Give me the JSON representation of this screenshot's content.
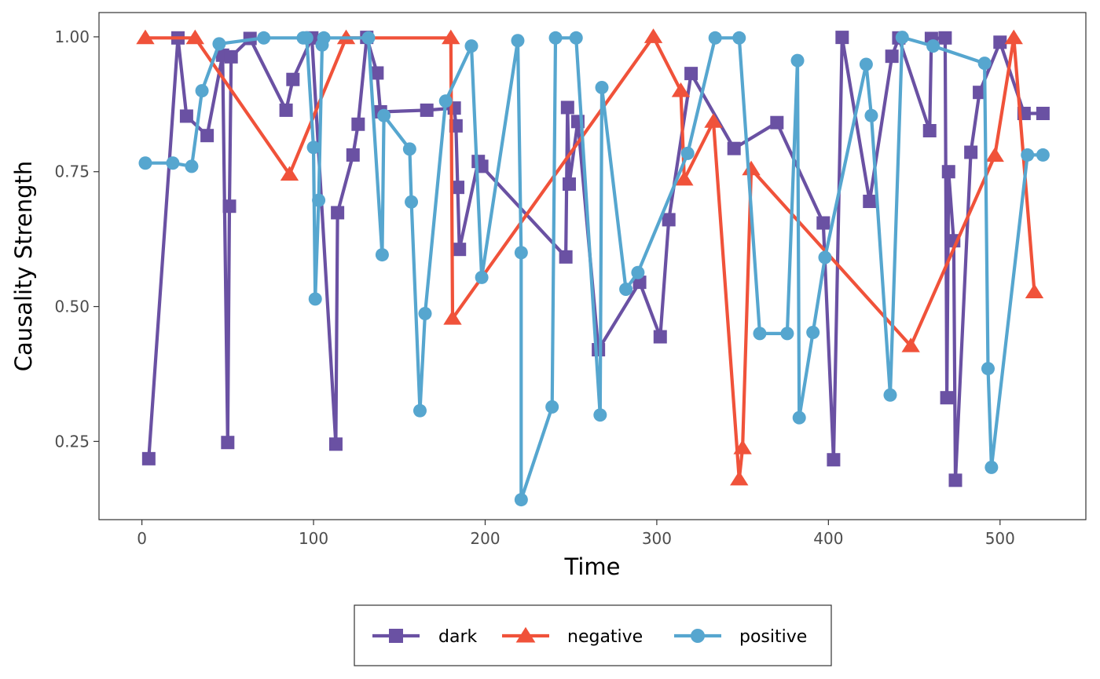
{
  "chart_data": {
    "type": "line",
    "xlabel": "Time",
    "ylabel": "Causality Strength",
    "xlim": [
      -25,
      550
    ],
    "ylim": [
      0.105,
      1.045
    ],
    "x_ticks": [
      0,
      100,
      200,
      300,
      400,
      500
    ],
    "y_ticks": [
      0.25,
      0.5,
      0.75,
      1.0
    ],
    "x_tick_labels": [
      "0",
      "100",
      "200",
      "300",
      "400",
      "500"
    ],
    "y_tick_labels": [
      "0.25",
      "0.50",
      "0.75",
      "1.00"
    ],
    "grid": false,
    "legend_position": "bottom",
    "series": [
      {
        "name": "dark",
        "color": "#6a51a3",
        "marker": "square",
        "points": [
          [
            4,
            0.218
          ],
          [
            21,
            0.998
          ],
          [
            26,
            0.853
          ],
          [
            38,
            0.817
          ],
          [
            47,
            0.966
          ],
          [
            50,
            0.248
          ],
          [
            51,
            0.686
          ],
          [
            52,
            0.963
          ],
          [
            63,
            0.997
          ],
          [
            84,
            0.864
          ],
          [
            88,
            0.921
          ],
          [
            99,
            0.998
          ],
          [
            113,
            0.245
          ],
          [
            114,
            0.674
          ],
          [
            123,
            0.781
          ],
          [
            126,
            0.838
          ],
          [
            131,
            0.999
          ],
          [
            137,
            0.933
          ],
          [
            139,
            0.861
          ],
          [
            166,
            0.864
          ],
          [
            182,
            0.868
          ],
          [
            183,
            0.835
          ],
          [
            184,
            0.721
          ],
          [
            185,
            0.606
          ],
          [
            196,
            0.769
          ],
          [
            198,
            0.76
          ],
          [
            247,
            0.592
          ],
          [
            248,
            0.869
          ],
          [
            249,
            0.727
          ],
          [
            254,
            0.843
          ],
          [
            266,
            0.42
          ],
          [
            290,
            0.545
          ],
          [
            302,
            0.444
          ],
          [
            307,
            0.661
          ],
          [
            320,
            0.932
          ],
          [
            345,
            0.793
          ],
          [
            370,
            0.841
          ],
          [
            397,
            0.655
          ],
          [
            403,
            0.216
          ],
          [
            408,
            0.999
          ],
          [
            424,
            0.695
          ],
          [
            437,
            0.964
          ],
          [
            441,
            0.998
          ],
          [
            459,
            0.826
          ],
          [
            460,
            0.997
          ],
          [
            468,
            0.998
          ],
          [
            469,
            0.331
          ],
          [
            470,
            0.75
          ],
          [
            473,
            0.622
          ],
          [
            474,
            0.178
          ],
          [
            483,
            0.786
          ],
          [
            488,
            0.897
          ],
          [
            500,
            0.99
          ],
          [
            514,
            0.858
          ],
          [
            525,
            0.858
          ]
        ]
      },
      {
        "name": "negative",
        "color": "#f0523a",
        "marker": "triangle",
        "points": [
          [
            2,
            0.998
          ],
          [
            31,
            0.998
          ],
          [
            86,
            0.745
          ],
          [
            119,
            0.998
          ],
          [
            180,
            0.998
          ],
          [
            181,
            0.478
          ],
          [
            298,
            1.0
          ],
          [
            314,
            0.9
          ],
          [
            316,
            0.736
          ],
          [
            333,
            0.843
          ],
          [
            348,
            0.18
          ],
          [
            350,
            0.238
          ],
          [
            355,
            0.755
          ],
          [
            448,
            0.427
          ],
          [
            497,
            0.78
          ],
          [
            508,
            0.998
          ],
          [
            520,
            0.527
          ]
        ]
      },
      {
        "name": "positive",
        "color": "#56a6cf",
        "marker": "circle",
        "points": [
          [
            2,
            0.766
          ],
          [
            18,
            0.766
          ],
          [
            29,
            0.76
          ],
          [
            35,
            0.9
          ],
          [
            45,
            0.987
          ],
          [
            71,
            0.998
          ],
          [
            94,
            0.998
          ],
          [
            96,
            0.998
          ],
          [
            100,
            0.795
          ],
          [
            101,
            0.514
          ],
          [
            103,
            0.697
          ],
          [
            105,
            0.985
          ],
          [
            106,
            0.998
          ],
          [
            132,
            0.998
          ],
          [
            140,
            0.596
          ],
          [
            141,
            0.854
          ],
          [
            156,
            0.792
          ],
          [
            157,
            0.694
          ],
          [
            162,
            0.307
          ],
          [
            165,
            0.487
          ],
          [
            177,
            0.881
          ],
          [
            192,
            0.983
          ],
          [
            198,
            0.554
          ],
          [
            219,
            0.993
          ],
          [
            221,
            0.6
          ],
          [
            221,
            0.142
          ],
          [
            239,
            0.314
          ],
          [
            241,
            0.998
          ],
          [
            253,
            0.998
          ],
          [
            267,
            0.299
          ],
          [
            268,
            0.906
          ],
          [
            282,
            0.532
          ],
          [
            289,
            0.563
          ],
          [
            318,
            0.784
          ],
          [
            334,
            0.998
          ],
          [
            348,
            0.998
          ],
          [
            360,
            0.45
          ],
          [
            376,
            0.45
          ],
          [
            382,
            0.956
          ],
          [
            383,
            0.294
          ],
          [
            391,
            0.452
          ],
          [
            398,
            0.591
          ],
          [
            422,
            0.949
          ],
          [
            425,
            0.854
          ],
          [
            436,
            0.336
          ],
          [
            443,
            0.999
          ],
          [
            461,
            0.983
          ],
          [
            491,
            0.951
          ],
          [
            493,
            0.385
          ],
          [
            495,
            0.202
          ],
          [
            516,
            0.781
          ],
          [
            525,
            0.781
          ]
        ]
      }
    ]
  }
}
